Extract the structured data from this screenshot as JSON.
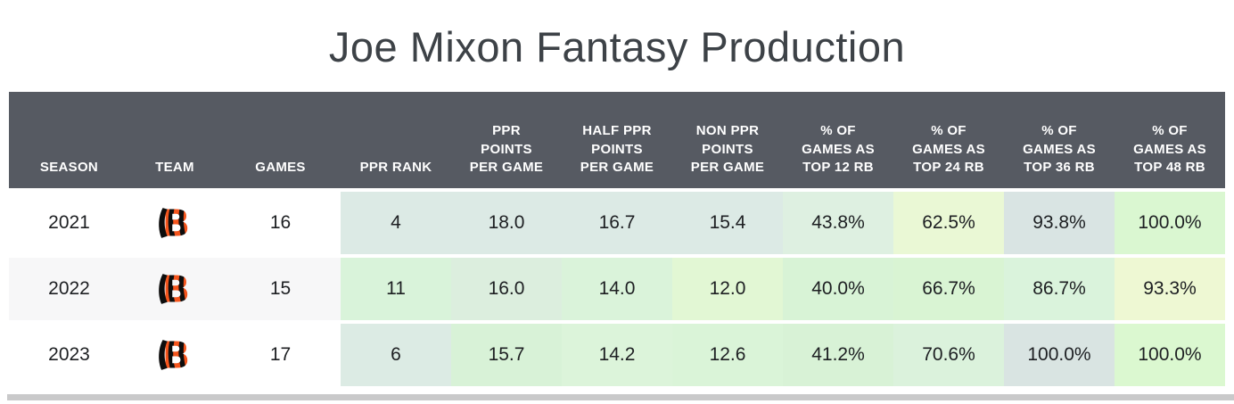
{
  "title": "Joe Mixon Fantasy Production",
  "table": {
    "header_bg": "#565a62",
    "header_text_color": "#ffffff",
    "headers": [
      "SEASON",
      "TEAM",
      "GAMES",
      "PPR RANK",
      "PPR\nPOINTS\nPER GAME",
      "HALF PPR\nPOINTS\nPER GAME",
      "NON PPR\nPOINTS\nPER GAME",
      "% OF\nGAMES AS\nTOP 12 RB",
      "% OF\nGAMES AS\nTOP 24 RB",
      "% OF\nGAMES AS\nTOP 36 RB",
      "% OF\nGAMES AS\nTOP 48 RB"
    ],
    "rows": [
      {
        "season": "2021",
        "team": "Cincinnati Bengals",
        "games": "16",
        "row_bg": "#ffffff",
        "values": [
          "4",
          "18.0",
          "16.7",
          "15.4",
          "43.8%",
          "62.5%",
          "93.8%",
          "100.0%"
        ],
        "value_colors": [
          "#dceae5",
          "#dceae5",
          "#dceae5",
          "#dceae5",
          "#def0e1",
          "#eaf8d5",
          "#d9e4e3",
          "#daf7d1"
        ]
      },
      {
        "season": "2022",
        "team": "Cincinnati Bengals",
        "games": "15",
        "row_bg": "#f7f7f8",
        "values": [
          "11",
          "16.0",
          "14.0",
          "12.0",
          "40.0%",
          "66.7%",
          "86.7%",
          "93.3%"
        ],
        "value_colors": [
          "#d9f3da",
          "#dceede",
          "#daf3da",
          "#e2f7d4",
          "#d8f3d6",
          "#d9f4d3",
          "#daf3dc",
          "#eef8d3"
        ]
      },
      {
        "season": "2023",
        "team": "Cincinnati Bengals",
        "games": "17",
        "row_bg": "#ffffff",
        "values": [
          "6",
          "15.7",
          "14.2",
          "12.6",
          "41.2%",
          "70.6%",
          "100.0%",
          "100.0%"
        ],
        "value_colors": [
          "#dcebe4",
          "#d8f2d7",
          "#dcf4da",
          "#daf4d8",
          "#d8f2d6",
          "#dbf2dc",
          "#d9e4e2",
          "#dbf8d0"
        ]
      }
    ]
  },
  "team_logo": {
    "team": "Cincinnati Bengals",
    "icon": "bengals-b-logo",
    "orange": "#f4551d",
    "black": "#0d0d0d"
  },
  "scrollbar_color": "#c9c9ca"
}
